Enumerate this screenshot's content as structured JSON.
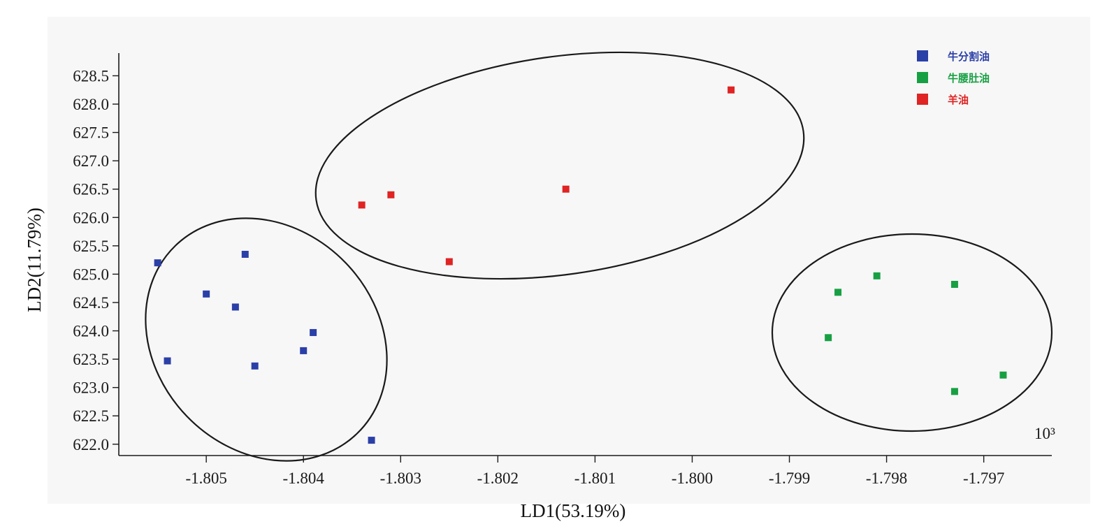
{
  "chart_data": {
    "type": "scatter",
    "title": "",
    "xlabel": "LD1(53.19%)",
    "ylabel": "LD2(11.79%)",
    "x_scale_note": "10³",
    "xlim": [
      -1.8059,
      -1.7963
    ],
    "ylim": [
      621.8,
      628.9
    ],
    "xticks": [
      -1.805,
      -1.804,
      -1.803,
      -1.802,
      -1.801,
      -1.8,
      -1.799,
      -1.798,
      -1.797
    ],
    "xtick_labels": [
      "-1.805",
      "-1.804",
      "-1.803",
      "-1.802",
      "-1.801",
      "-1.800",
      "-1.799",
      "-1.798",
      "-1.797"
    ],
    "yticks": [
      622.0,
      622.5,
      623.0,
      623.5,
      624.0,
      624.5,
      625.0,
      625.5,
      626.0,
      626.5,
      627.0,
      627.5,
      628.0,
      628.5
    ],
    "ytick_labels": [
      "622.0",
      "622.5",
      "623.0",
      "623.5",
      "624.0",
      "624.5",
      "625.0",
      "625.5",
      "626.0",
      "626.5",
      "627.0",
      "627.5",
      "628.0",
      "628.5"
    ],
    "grid": false,
    "legend_position": "top-right",
    "series": [
      {
        "name": "牛分割油",
        "color": "#2b3fa8",
        "points": [
          [
            -1.8055,
            625.2
          ],
          [
            -1.805,
            624.65
          ],
          [
            -1.8046,
            625.35
          ],
          [
            -1.8047,
            624.42
          ],
          [
            -1.8054,
            623.47
          ],
          [
            -1.8045,
            623.38
          ],
          [
            -1.804,
            623.65
          ],
          [
            -1.8039,
            623.97
          ],
          [
            -1.8033,
            622.07
          ]
        ]
      },
      {
        "name": "牛腰肚油",
        "color": "#17a043",
        "points": [
          [
            -1.7986,
            623.88
          ],
          [
            -1.7985,
            624.68
          ],
          [
            -1.7981,
            624.97
          ],
          [
            -1.7973,
            624.82
          ],
          [
            -1.7973,
            622.93
          ],
          [
            -1.7968,
            623.22
          ]
        ]
      },
      {
        "name": "羊油",
        "color": "#e02323",
        "points": [
          [
            -1.8034,
            626.22
          ],
          [
            -1.8031,
            626.4
          ],
          [
            -1.8025,
            625.22
          ],
          [
            -1.8013,
            626.5
          ],
          [
            -1.7996,
            628.25
          ]
        ]
      }
    ]
  }
}
